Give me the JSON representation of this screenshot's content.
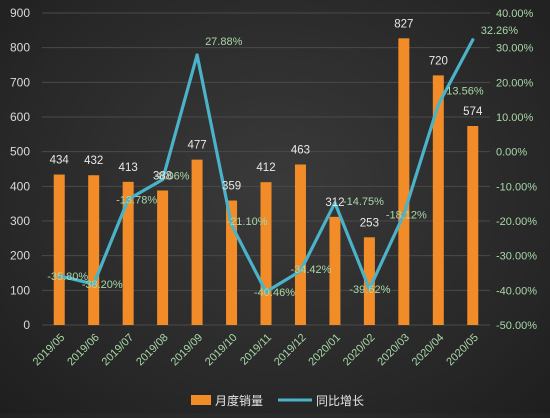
{
  "chart_data": {
    "type": "bar",
    "categories": [
      "2019/05",
      "2019/06",
      "2019/07",
      "2019/08",
      "2019/09",
      "2019/10",
      "2019/11",
      "2019/12",
      "2020/01",
      "2020/02",
      "2020/03",
      "2020/04",
      "2020/05"
    ],
    "series": [
      {
        "name": "月度销量",
        "type": "bar",
        "axis": "left",
        "values": [
          434,
          432,
          413,
          388,
          477,
          359,
          412,
          463,
          312,
          253,
          827,
          720,
          574
        ],
        "labels": [
          "434",
          "432",
          "413",
          "388",
          "477",
          "359",
          "412",
          "463",
          "312",
          "253",
          "827",
          "720",
          "574"
        ],
        "color": "#f28c28"
      },
      {
        "name": "同比增长",
        "type": "line",
        "axis": "right",
        "values": [
          -35.8,
          -38.2,
          -13.78,
          -8.06,
          27.88,
          -21.1,
          -40.46,
          -34.42,
          -14.75,
          -39.62,
          -18.12,
          13.56,
          32.26
        ],
        "labels": [
          "-35.80%",
          "-38.20%",
          "-13.78%",
          "-8.06%",
          "27.88%",
          "-21.10%",
          "-40.46%",
          "-34.42%",
          "-14.75%",
          "-39.62%",
          "-18.12%",
          "13.56%",
          "32.26%"
        ],
        "color": "#4bb3c9"
      }
    ],
    "y_left": {
      "range": [
        0,
        900
      ],
      "ticks": [
        "0",
        "100",
        "200",
        "300",
        "400",
        "500",
        "600",
        "700",
        "800",
        "900"
      ]
    },
    "y_right": {
      "range": [
        -50,
        40
      ],
      "ticks": [
        "-50.00%",
        "-40.00%",
        "-30.00%",
        "-20.00%",
        "-10.00%",
        "0.00%",
        "10.00%",
        "20.00%",
        "30.00%",
        "40.00%"
      ]
    },
    "legend_position": "bottom",
    "grid": true
  }
}
